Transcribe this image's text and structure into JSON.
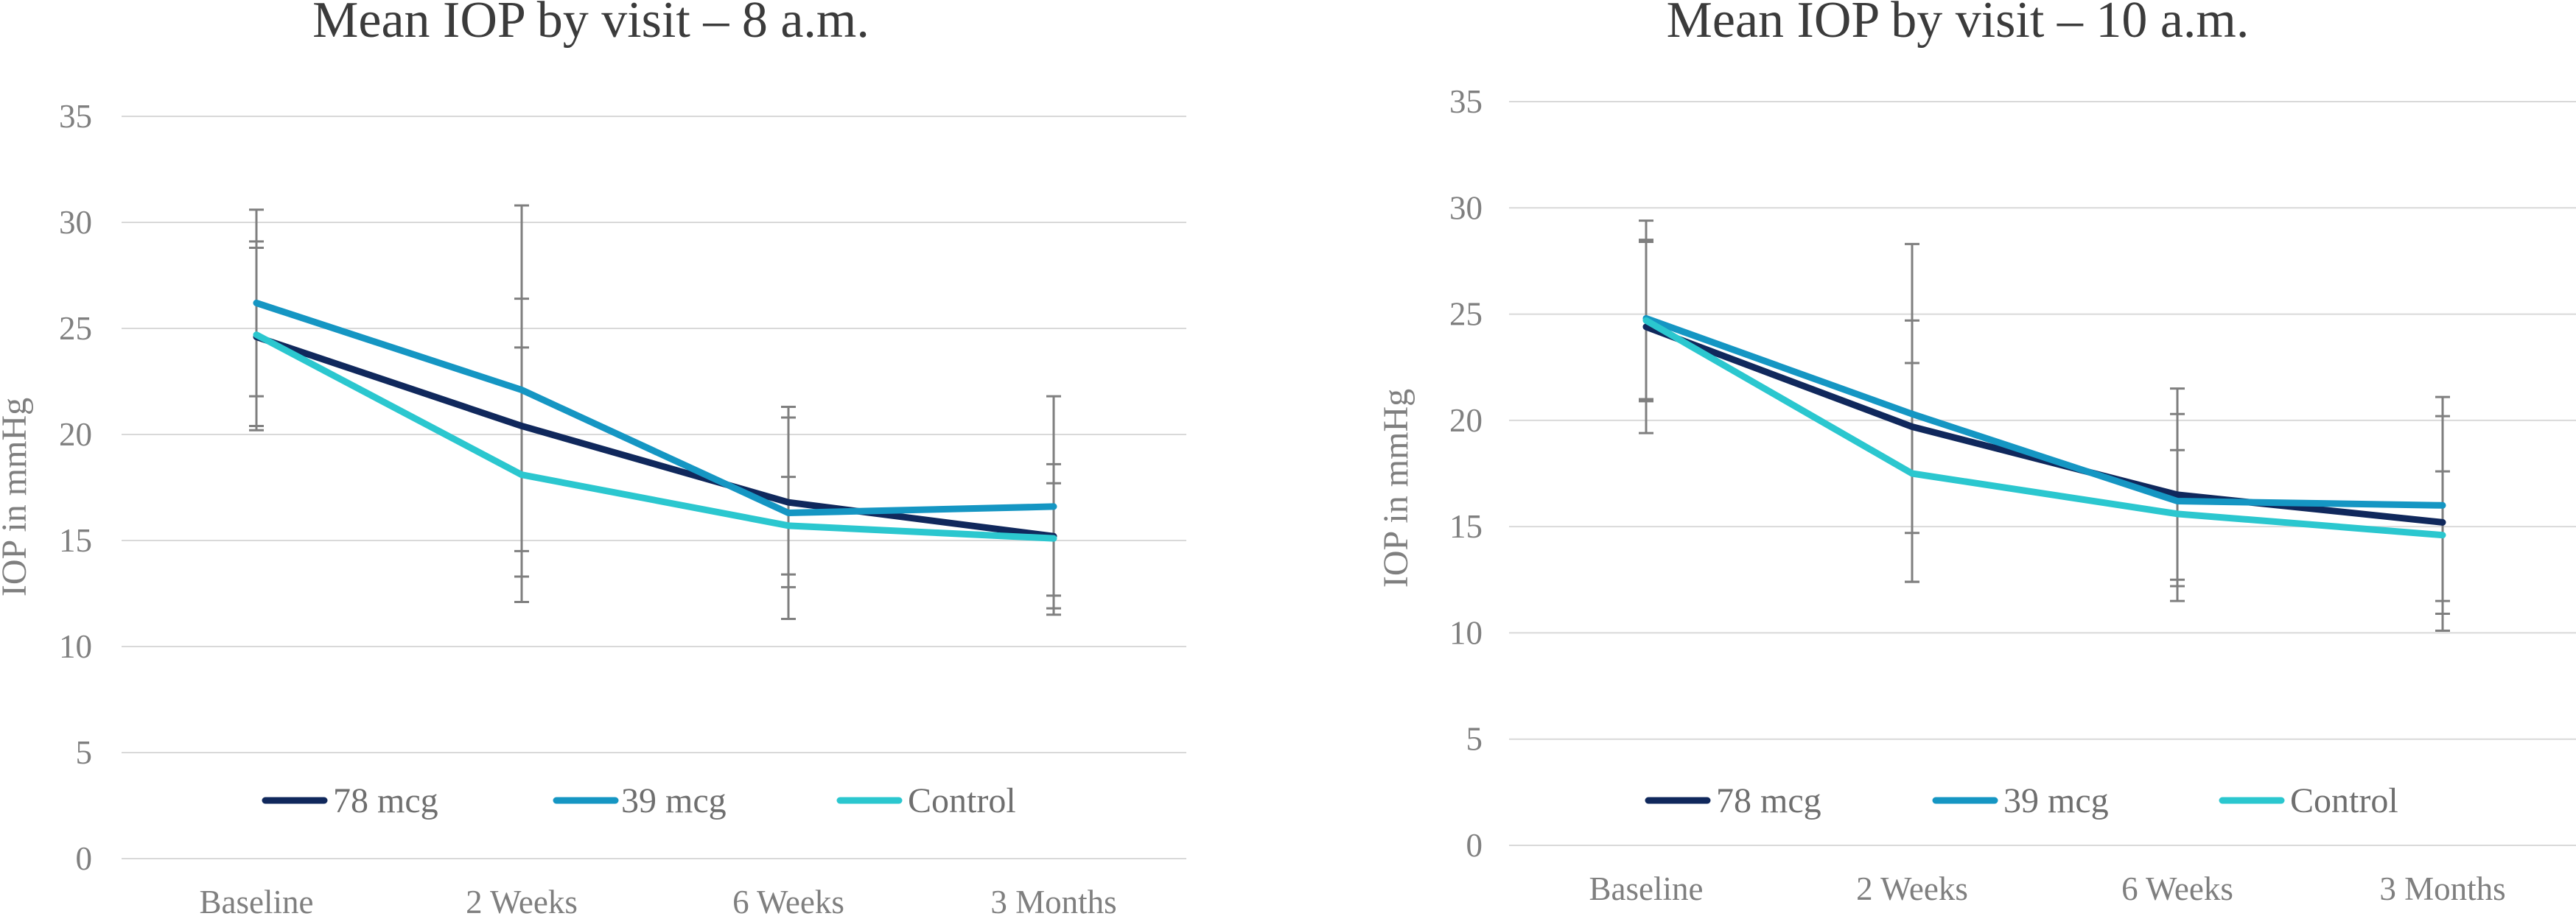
{
  "colors": {
    "78 mcg": "#10285c",
    "39 mcg": "#1596c3",
    "Control": "#2bc7cf",
    "grid": "#d9d9d9",
    "errorbar": "#7f7f7f",
    "text": "#7f7f7f",
    "title": "#3b3b3b"
  },
  "chart_data": [
    {
      "type": "line",
      "title": "Mean IOP by visit – 8 a.m.",
      "xlabel": "",
      "ylabel": "IOP in mmHg",
      "categories": [
        "Baseline",
        "2 Weeks",
        "6 Weeks",
        "3 Months"
      ],
      "ylim": [
        0,
        35
      ],
      "yticks": [
        0,
        5,
        10,
        15,
        20,
        25,
        30,
        35
      ],
      "grid": true,
      "legend_position": "bottom",
      "series": [
        {
          "name": "78 mcg",
          "values": [
            24.6,
            20.4,
            16.8,
            15.2
          ],
          "err_low": [
            20.4,
            14.5,
            12.8,
            11.5
          ],
          "err_high": [
            28.8,
            26.4,
            20.8,
            18.6
          ]
        },
        {
          "name": "39 mcg",
          "values": [
            26.2,
            22.1,
            16.3,
            16.6
          ],
          "err_low": [
            21.8,
            13.3,
            11.3,
            12.4
          ],
          "err_high": [
            30.6,
            30.8,
            21.3,
            21.8
          ]
        },
        {
          "name": "Control",
          "values": [
            24.7,
            18.1,
            15.7,
            15.1
          ],
          "err_low": [
            20.2,
            12.1,
            13.4,
            11.8
          ],
          "err_high": [
            29.1,
            24.1,
            18.0,
            17.7
          ]
        }
      ]
    },
    {
      "type": "line",
      "title": "Mean IOP by visit – 10 a.m.",
      "xlabel": "",
      "ylabel": "IOP in mmHg",
      "categories": [
        "Baseline",
        "2 Weeks",
        "6 Weeks",
        "3 Months"
      ],
      "ylim": [
        0,
        35
      ],
      "yticks": [
        0,
        5,
        10,
        15,
        20,
        25,
        30,
        35
      ],
      "grid": true,
      "legend_position": "bottom",
      "series": [
        {
          "name": "78 mcg",
          "values": [
            24.4,
            19.7,
            16.5,
            15.2
          ],
          "err_low": [
            20.9,
            14.7,
            12.5,
            10.9
          ],
          "err_high": [
            28.4,
            24.7,
            20.3,
            20.2
          ]
        },
        {
          "name": "39 mcg",
          "values": [
            24.8,
            20.3,
            16.2,
            16.0
          ],
          "err_low": [
            19.4,
            12.4,
            11.5,
            10.1
          ],
          "err_high": [
            29.4,
            28.3,
            21.5,
            21.1
          ]
        },
        {
          "name": "Control",
          "values": [
            24.7,
            17.5,
            15.6,
            14.6
          ],
          "err_low": [
            21.0,
            12.4,
            12.2,
            11.5
          ],
          "err_high": [
            28.5,
            22.7,
            18.6,
            17.6
          ]
        }
      ]
    }
  ]
}
